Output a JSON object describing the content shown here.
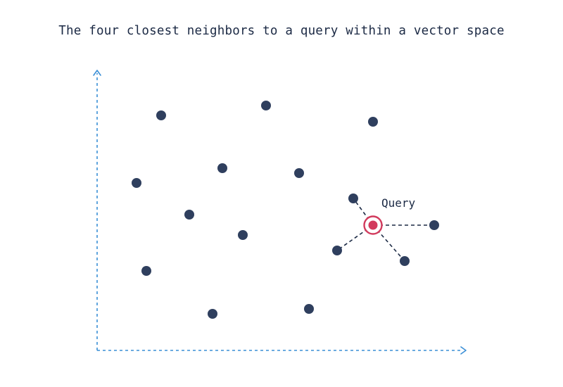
{
  "title": "The four closest neighbors to a query within a vector space",
  "query_label": "Query",
  "colors": {
    "point": "#2f3f5e",
    "query": "#d23b5d",
    "axis": "#3a8fd6",
    "text": "#1b2944"
  }
}
